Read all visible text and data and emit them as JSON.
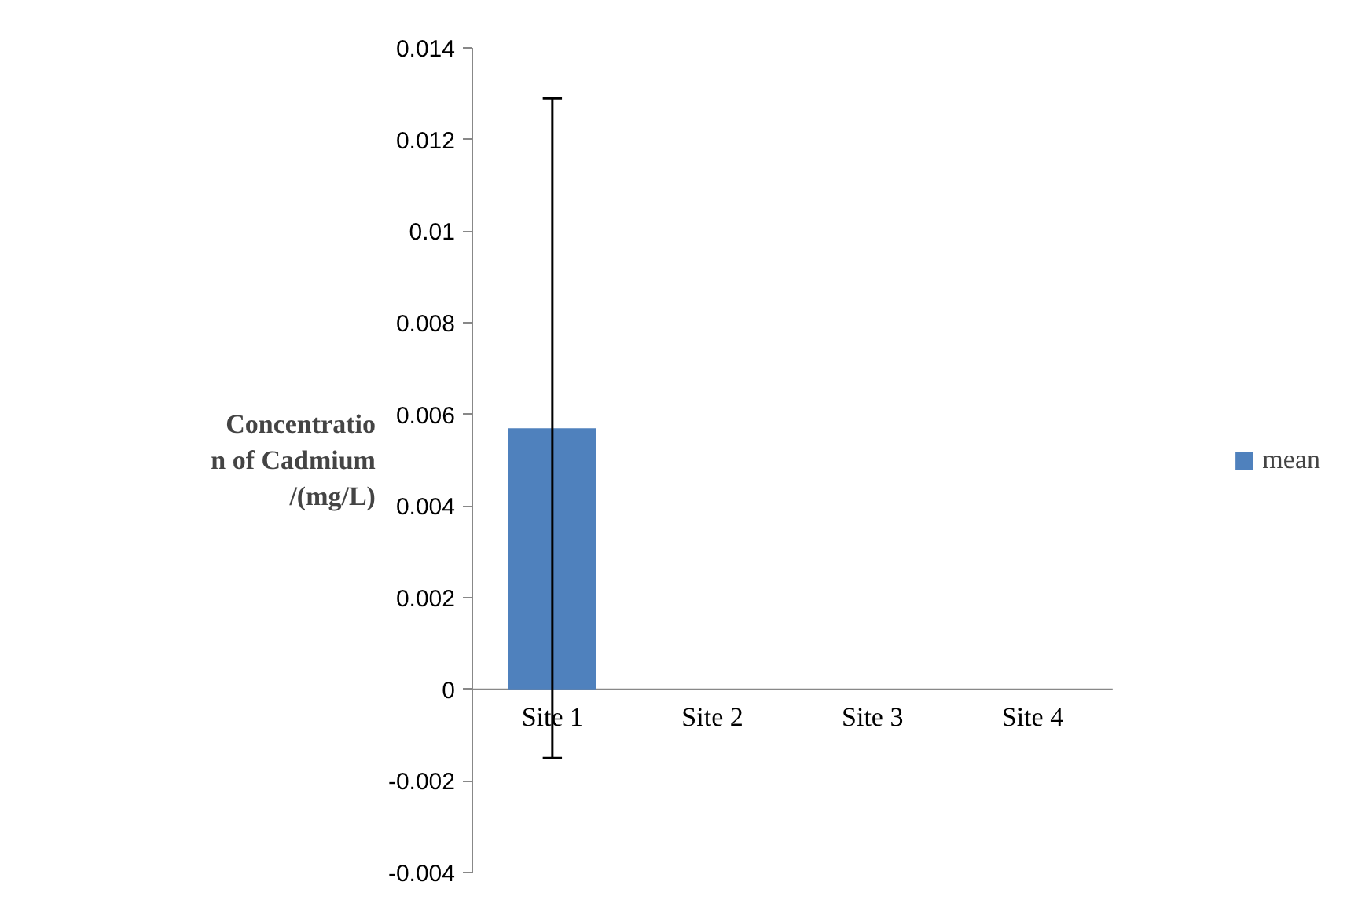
{
  "chart_data": {
    "type": "bar",
    "ylabel": "Concentration of Cadmium/(mg/L)",
    "categories": [
      "Site 1",
      "Site 2",
      "Site 3",
      "Site 4"
    ],
    "series": [
      {
        "name": "mean",
        "color": "#4f81bd",
        "values": [
          0.0057,
          0,
          0,
          0
        ],
        "errors": [
          0.0072,
          null,
          null,
          null
        ]
      }
    ],
    "ylim": [
      -0.004,
      0.014
    ],
    "yticks": [
      -0.004,
      -0.002,
      0,
      0.002,
      0.004,
      0.006,
      0.008,
      0.01,
      0.012,
      0.014
    ],
    "grid": false,
    "legend": "right"
  }
}
